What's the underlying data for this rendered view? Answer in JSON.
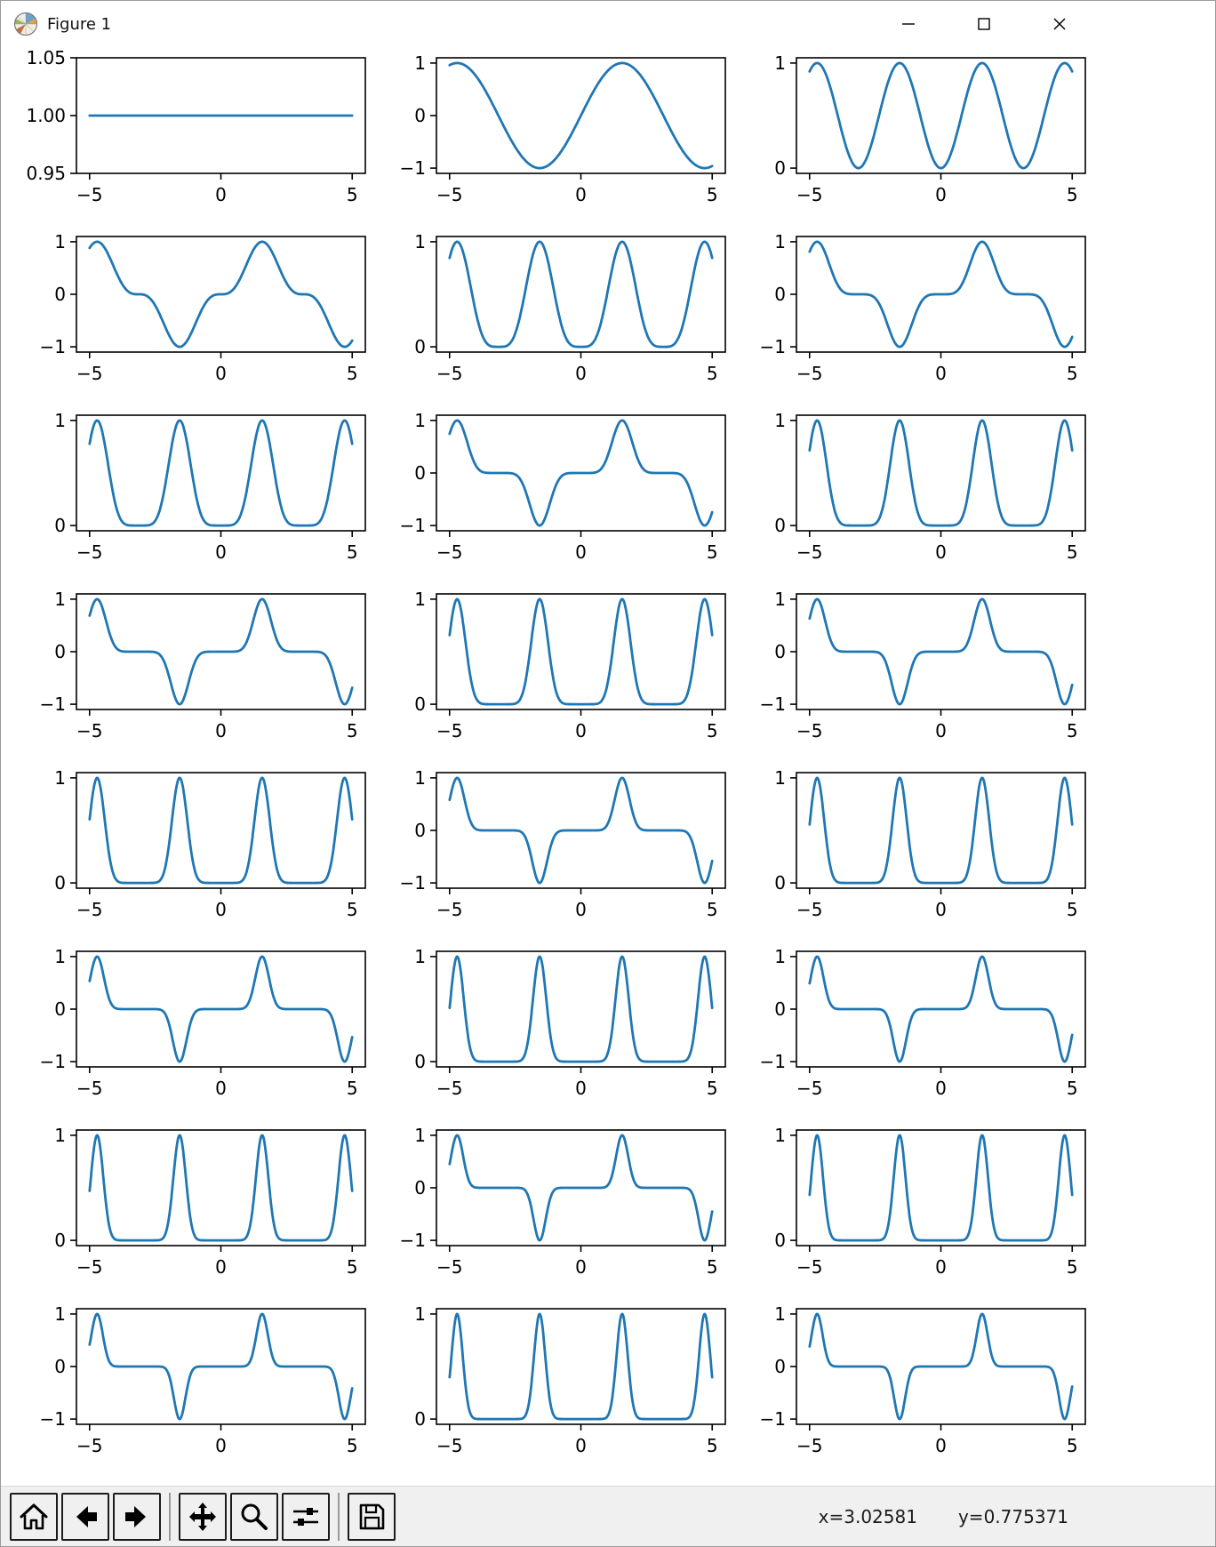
{
  "window": {
    "title": "Figure 1",
    "controls": [
      {
        "name": "minimize"
      },
      {
        "name": "maximize"
      },
      {
        "name": "close"
      }
    ]
  },
  "toolbar": {
    "background": "#f0f0f0",
    "buttons": [
      {
        "name": "home"
      },
      {
        "name": "back"
      },
      {
        "name": "forward"
      },
      {
        "name": "pan"
      },
      {
        "name": "zoom"
      },
      {
        "name": "configure-subplots"
      },
      {
        "name": "save"
      }
    ],
    "readout": {
      "x": "x=3.02581",
      "y": "y=0.775371"
    }
  },
  "chart_data": {
    "type": "line",
    "function": "y = sin(x)^n",
    "layout": {
      "rows": 8,
      "cols": 3
    },
    "line_color": "#1f77b4",
    "x_range": [
      -5,
      5
    ],
    "xlim": [
      -5.5,
      5.5
    ],
    "xticks": [
      -5,
      0,
      5
    ],
    "xtick_labels": [
      "−5",
      "0",
      "5"
    ],
    "subplots": [
      {
        "n": 0,
        "ylim": [
          0.95,
          1.05
        ],
        "yticks": [
          0.95,
          1.0,
          1.05
        ],
        "ytick_labels": [
          "0.95",
          "1.00",
          "1.05"
        ]
      },
      {
        "n": 1,
        "ylim": [
          -1.1,
          1.1
        ],
        "yticks": [
          -1,
          0,
          1
        ],
        "ytick_labels": [
          "−1",
          "0",
          "1"
        ]
      },
      {
        "n": 2,
        "ylim": [
          -0.05,
          1.05
        ],
        "yticks": [
          0,
          1
        ],
        "ytick_labels": [
          "0",
          "1"
        ]
      },
      {
        "n": 3,
        "ylim": [
          -1.1,
          1.1
        ],
        "yticks": [
          -1,
          0,
          1
        ],
        "ytick_labels": [
          "−1",
          "0",
          "1"
        ]
      },
      {
        "n": 4,
        "ylim": [
          -0.05,
          1.05
        ],
        "yticks": [
          0,
          1
        ],
        "ytick_labels": [
          "0",
          "1"
        ]
      },
      {
        "n": 5,
        "ylim": [
          -1.1,
          1.1
        ],
        "yticks": [
          -1,
          0,
          1
        ],
        "ytick_labels": [
          "−1",
          "0",
          "1"
        ]
      },
      {
        "n": 6,
        "ylim": [
          -0.05,
          1.05
        ],
        "yticks": [
          0,
          1
        ],
        "ytick_labels": [
          "0",
          "1"
        ]
      },
      {
        "n": 7,
        "ylim": [
          -1.1,
          1.1
        ],
        "yticks": [
          -1,
          0,
          1
        ],
        "ytick_labels": [
          "−1",
          "0",
          "1"
        ]
      },
      {
        "n": 8,
        "ylim": [
          -0.05,
          1.05
        ],
        "yticks": [
          0,
          1
        ],
        "ytick_labels": [
          "0",
          "1"
        ]
      },
      {
        "n": 9,
        "ylim": [
          -1.1,
          1.1
        ],
        "yticks": [
          -1,
          0,
          1
        ],
        "ytick_labels": [
          "−1",
          "0",
          "1"
        ]
      },
      {
        "n": 10,
        "ylim": [
          -0.05,
          1.05
        ],
        "yticks": [
          0,
          1
        ],
        "ytick_labels": [
          "0",
          "1"
        ]
      },
      {
        "n": 11,
        "ylim": [
          -1.1,
          1.1
        ],
        "yticks": [
          -1,
          0,
          1
        ],
        "ytick_labels": [
          "−1",
          "0",
          "1"
        ]
      },
      {
        "n": 12,
        "ylim": [
          -0.05,
          1.05
        ],
        "yticks": [
          0,
          1
        ],
        "ytick_labels": [
          "0",
          "1"
        ]
      },
      {
        "n": 13,
        "ylim": [
          -1.1,
          1.1
        ],
        "yticks": [
          -1,
          0,
          1
        ],
        "ytick_labels": [
          "−1",
          "0",
          "1"
        ]
      },
      {
        "n": 14,
        "ylim": [
          -0.05,
          1.05
        ],
        "yticks": [
          0,
          1
        ],
        "ytick_labels": [
          "0",
          "1"
        ]
      },
      {
        "n": 15,
        "ylim": [
          -1.1,
          1.1
        ],
        "yticks": [
          -1,
          0,
          1
        ],
        "ytick_labels": [
          "−1",
          "0",
          "1"
        ]
      },
      {
        "n": 16,
        "ylim": [
          -0.05,
          1.05
        ],
        "yticks": [
          0,
          1
        ],
        "ytick_labels": [
          "0",
          "1"
        ]
      },
      {
        "n": 17,
        "ylim": [
          -1.1,
          1.1
        ],
        "yticks": [
          -1,
          0,
          1
        ],
        "ytick_labels": [
          "−1",
          "0",
          "1"
        ]
      },
      {
        "n": 18,
        "ylim": [
          -0.05,
          1.05
        ],
        "yticks": [
          0,
          1
        ],
        "ytick_labels": [
          "0",
          "1"
        ]
      },
      {
        "n": 19,
        "ylim": [
          -1.1,
          1.1
        ],
        "yticks": [
          -1,
          0,
          1
        ],
        "ytick_labels": [
          "−1",
          "0",
          "1"
        ]
      },
      {
        "n": 20,
        "ylim": [
          -0.05,
          1.05
        ],
        "yticks": [
          0,
          1
        ],
        "ytick_labels": [
          "0",
          "1"
        ]
      },
      {
        "n": 21,
        "ylim": [
          -1.1,
          1.1
        ],
        "yticks": [
          -1,
          0,
          1
        ],
        "ytick_labels": [
          "−1",
          "0",
          "1"
        ]
      },
      {
        "n": 22,
        "ylim": [
          -0.05,
          1.05
        ],
        "yticks": [
          0,
          1
        ],
        "ytick_labels": [
          "0",
          "1"
        ]
      },
      {
        "n": 23,
        "ylim": [
          -1.1,
          1.1
        ],
        "yticks": [
          -1,
          0,
          1
        ],
        "ytick_labels": [
          "−1",
          "0",
          "1"
        ]
      }
    ]
  }
}
